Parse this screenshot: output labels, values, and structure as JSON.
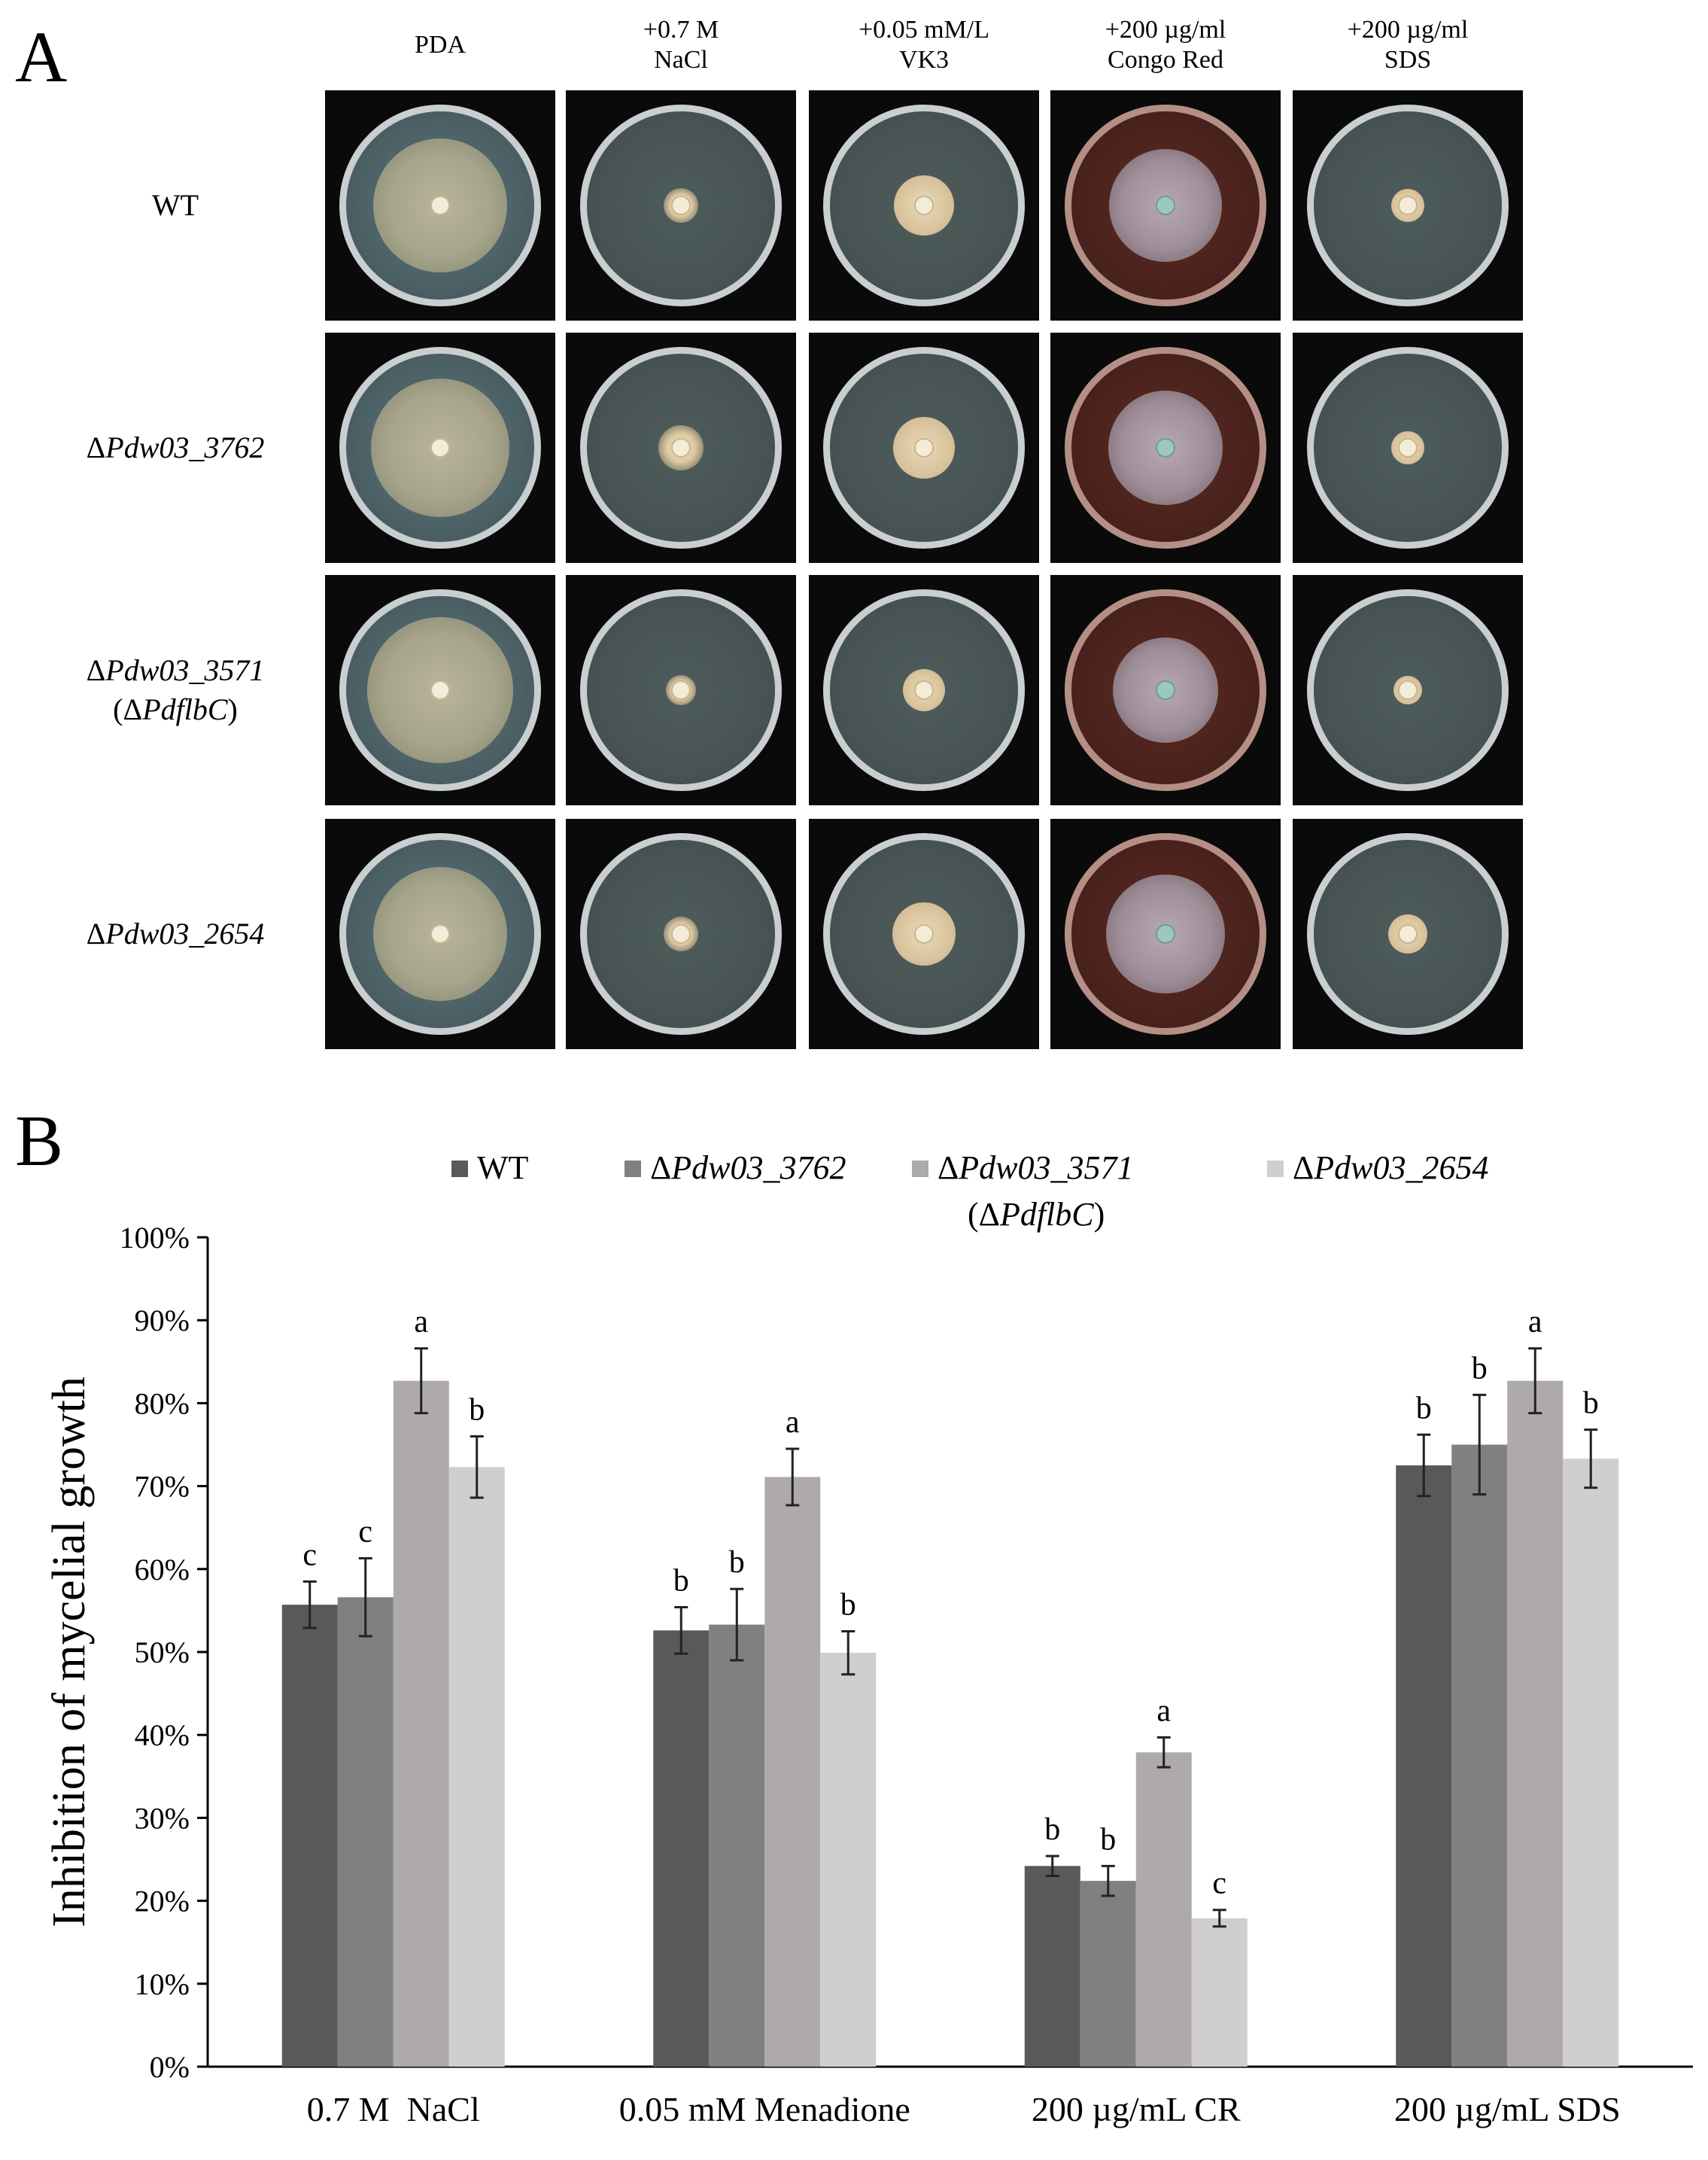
{
  "panelA": {
    "letter": "A",
    "columns": [
      {
        "line1": "PDA",
        "line2": ""
      },
      {
        "line1": "+0.7 M",
        "line2": "NaCl"
      },
      {
        "line1": "+0.05 mM/L",
        "line2": "VK3"
      },
      {
        "line1": "+200 µg/ml",
        "line2": "Congo Red"
      },
      {
        "line1": "+200 µg/ml",
        "line2": "SDS"
      }
    ],
    "rows": [
      {
        "prefix": "",
        "italic": "",
        "plain": "WT",
        "sub_prefix": "",
        "sub_italic": "",
        "sub_suffix": ""
      },
      {
        "prefix": "Δ",
        "italic": "Pdw03_3762",
        "plain": "",
        "sub_prefix": "",
        "sub_italic": "",
        "sub_suffix": ""
      },
      {
        "prefix": "Δ",
        "italic": "Pdw03_3571",
        "plain": "",
        "sub_prefix": "(Δ",
        "sub_italic": "PdflbC",
        "sub_suffix": ")"
      },
      {
        "prefix": "Δ",
        "italic": "Pdw03_2654",
        "plain": "",
        "sub_prefix": "",
        "sub_italic": "",
        "sub_suffix": ""
      }
    ]
  },
  "panelB": {
    "letter": "B",
    "legend": [
      {
        "prefix": "",
        "italic": "",
        "plain": "WT",
        "color": "#595959"
      },
      {
        "prefix": "Δ",
        "italic": "Pdw03_3762",
        "plain": "",
        "color": "#808080"
      },
      {
        "prefix": "Δ",
        "italic": "Pdw03_3571",
        "plain": "",
        "color": "#aeaaaa"
      },
      {
        "prefix": "Δ",
        "italic": "Pdw03_2654",
        "plain": "",
        "color": "#d0cece"
      }
    ],
    "legend_sub": {
      "prefix": "(Δ",
      "italic": "PdflbC",
      "suffix": ")"
    }
  },
  "chart_data": {
    "type": "bar",
    "title": "",
    "xlabel": "",
    "ylabel": "Inhibition of mycelial growth",
    "ylim": [
      0,
      100
    ],
    "yticks": [
      "0%",
      "10%",
      "20%",
      "30%",
      "40%",
      "50%",
      "60%",
      "70%",
      "80%",
      "90%",
      "100%"
    ],
    "categories": [
      "0.7 M  NaCl",
      "0.05 mM Menadione",
      "200 µg/mL CR",
      "200 µg/mL SDS"
    ],
    "series": [
      {
        "name": "WT",
        "color": "#595959",
        "values": [
          55.7,
          52.6,
          24.2,
          72.5
        ],
        "errors": [
          2.8,
          2.8,
          1.2,
          3.7
        ],
        "labels": [
          "c",
          "b",
          "b",
          "b"
        ]
      },
      {
        "name": "ΔPdw03_3762",
        "color": "#808080",
        "values": [
          56.6,
          53.3,
          22.4,
          75.0
        ],
        "errors": [
          4.7,
          4.3,
          1.8,
          6.0
        ],
        "labels": [
          "c",
          "b",
          "b",
          "b"
        ]
      },
      {
        "name": "ΔPdw03_3571 (ΔPdflbC)",
        "color": "#aeaaaa",
        "values": [
          82.7,
          71.1,
          37.9,
          82.7
        ],
        "errors": [
          3.9,
          3.4,
          1.8,
          3.9
        ],
        "labels": [
          "a",
          "a",
          "a",
          "a"
        ]
      },
      {
        "name": "ΔPdw03_2654",
        "color": "#d0cece",
        "values": [
          72.3,
          49.9,
          17.9,
          73.3
        ],
        "errors": [
          3.7,
          2.6,
          1.0,
          3.5
        ],
        "labels": [
          "b",
          "b",
          "c",
          "b"
        ]
      }
    ]
  }
}
